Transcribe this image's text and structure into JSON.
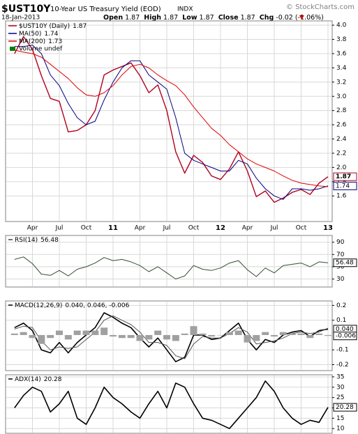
{
  "header": {
    "symbol": "$UST10Y",
    "name": "10-Year US Treasury Yield (EOD)",
    "exchange": "INDX",
    "source": "© StockCharts.com",
    "date": "18-Jan-2013",
    "quote": [
      {
        "label": "Open",
        "value": 1.87
      },
      {
        "label": "High",
        "value": 1.87
      },
      {
        "label": "Low",
        "value": 1.87
      },
      {
        "label": "Close",
        "value": 1.87
      }
    ],
    "change_label": "Chg",
    "change": "-0.02 (-1.06%)"
  },
  "chart_data": [
    {
      "type": "line",
      "x": [
        "2010-02",
        "2010-03",
        "2010-04",
        "2010-05",
        "2010-06",
        "2010-07",
        "2010-08",
        "2010-09",
        "2010-10",
        "2010-11",
        "2010-12",
        "2011-01",
        "2011-02",
        "2011-03",
        "2011-04",
        "2011-05",
        "2011-06",
        "2011-07",
        "2011-08",
        "2011-09",
        "2011-10",
        "2011-11",
        "2011-12",
        "2012-01",
        "2012-02",
        "2012-03",
        "2012-04",
        "2012-05",
        "2012-06",
        "2012-07",
        "2012-08",
        "2012-09",
        "2012-10",
        "2012-11",
        "2012-12",
        "2013-01"
      ],
      "xlim": [
        "2010-01",
        "2013-01"
      ],
      "xticks": [
        {
          "value": "2010-04",
          "label": "Apr"
        },
        {
          "value": "2010-07",
          "label": "Jul"
        },
        {
          "value": "2010-10",
          "label": "Oct"
        },
        {
          "value": "2011-01",
          "label": "11"
        },
        {
          "value": "2011-04",
          "label": "Apr"
        },
        {
          "value": "2011-07",
          "label": "Jul"
        },
        {
          "value": "2011-10",
          "label": "Oct"
        },
        {
          "value": "2012-01",
          "label": "12"
        },
        {
          "value": "2012-04",
          "label": "Apr"
        },
        {
          "value": "2012-07",
          "label": "Jul"
        },
        {
          "value": "2012-10",
          "label": "Oct"
        },
        {
          "value": "2013-01",
          "label": "13"
        }
      ],
      "ylim": [
        1.24,
        4.06
      ],
      "yticks": [
        1.6,
        1.8,
        {
          "value": 2,
          "label": "2.0"
        },
        2.2,
        2.4,
        2.6,
        2.8,
        {
          "value": 3,
          "label": "3.0"
        },
        3.2,
        3.4,
        3.6,
        3.8,
        {
          "value": 4,
          "label": "4.0"
        }
      ],
      "grid": true,
      "series": [
        {
          "name": "$UST10Y (Daily)",
          "color": "#b0001e",
          "values": [
            3.6,
            3.84,
            3.66,
            3.29,
            2.97,
            2.93,
            2.5,
            2.52,
            2.6,
            2.8,
            3.3,
            3.37,
            3.42,
            3.47,
            3.29,
            3.05,
            3.16,
            2.8,
            2.22,
            1.92,
            2.17,
            2.07,
            1.88,
            1.83,
            1.98,
            2.22,
            1.95,
            1.59,
            1.67,
            1.51,
            1.57,
            1.65,
            1.69,
            1.62,
            1.78,
            1.87
          ]
        },
        {
          "name": "MA(50)",
          "color": "#000080",
          "values": [
            3.7,
            3.7,
            3.72,
            3.6,
            3.3,
            3.15,
            2.9,
            2.7,
            2.6,
            2.65,
            2.95,
            3.2,
            3.4,
            3.5,
            3.5,
            3.3,
            3.2,
            3.1,
            2.7,
            2.2,
            2.1,
            2.05,
            2.0,
            1.95,
            1.95,
            2.1,
            2.05,
            1.85,
            1.7,
            1.6,
            1.55,
            1.7,
            1.7,
            1.68,
            1.7,
            1.74
          ]
        },
        {
          "name": "MA(200)",
          "color": "#e00000",
          "values": [
            3.65,
            3.62,
            3.6,
            3.55,
            3.45,
            3.35,
            3.25,
            3.12,
            3.02,
            3.0,
            3.05,
            3.15,
            3.3,
            3.42,
            3.45,
            3.4,
            3.3,
            3.22,
            3.15,
            3.02,
            2.85,
            2.7,
            2.55,
            2.45,
            2.32,
            2.22,
            2.12,
            2.05,
            2.0,
            1.95,
            1.88,
            1.82,
            1.78,
            1.76,
            1.74,
            1.73
          ]
        }
      ],
      "volume_label": "Volume undef"
    },
    {
      "type": "line",
      "label": "RSI(14)",
      "ylim": [
        17,
        101
      ],
      "yticks": [
        30,
        50,
        70,
        90
      ],
      "grid": true,
      "series": [
        {
          "color": "#2f4f2f",
          "values": [
            62,
            66,
            55,
            38,
            36,
            44,
            35,
            46,
            50,
            56,
            65,
            60,
            62,
            58,
            52,
            42,
            50,
            40,
            30,
            35,
            52,
            46,
            44,
            48,
            56,
            60,
            45,
            34,
            48,
            40,
            52,
            54,
            56,
            50,
            58,
            56.48
          ]
        }
      ]
    },
    {
      "type": "line",
      "label": "MACD(12,26,9)",
      "legend": "0.040, 0.046, -0.006",
      "tag_labels": [
        "0.040",
        "-0.006"
      ],
      "ylim": [
        -0.24,
        0.23
      ],
      "yticks": [
        -0.2,
        -0.1,
        0.1,
        0.2
      ],
      "grid": true,
      "series": [
        {
          "color": "#000000",
          "values": [
            0.05,
            0.08,
            0.03,
            -0.1,
            -0.12,
            -0.05,
            -0.12,
            -0.05,
            0.0,
            0.05,
            0.15,
            0.12,
            0.08,
            0.05,
            -0.02,
            -0.08,
            -0.02,
            -0.1,
            -0.18,
            -0.15,
            0.0,
            0.0,
            -0.03,
            -0.02,
            0.03,
            0.08,
            -0.03,
            -0.1,
            -0.03,
            -0.05,
            0.0,
            0.02,
            0.03,
            -0.01,
            0.03,
            0.04
          ]
        },
        {
          "color": "#555555",
          "values": [
            0.04,
            0.06,
            0.05,
            -0.04,
            -0.1,
            -0.08,
            -0.09,
            -0.08,
            -0.03,
            0.02,
            0.1,
            0.13,
            0.1,
            0.07,
            0.02,
            -0.05,
            -0.05,
            -0.07,
            -0.14,
            -0.16,
            -0.06,
            -0.01,
            -0.02,
            -0.02,
            0.01,
            0.05,
            0.02,
            -0.06,
            -0.05,
            -0.04,
            -0.02,
            0.01,
            0.02,
            0.01,
            0.02,
            0.046
          ]
        },
        {
          "type": "bar",
          "color": "#a0a0a0",
          "values": [
            0.01,
            0.02,
            -0.02,
            -0.06,
            -0.02,
            0.03,
            -0.03,
            0.03,
            0.03,
            0.03,
            0.05,
            -0.01,
            -0.02,
            -0.02,
            -0.04,
            -0.03,
            0.03,
            -0.03,
            -0.04,
            0.01,
            0.06,
            0.01,
            -0.01,
            0,
            0.02,
            0.03,
            -0.05,
            -0.04,
            0.02,
            -0.01,
            0.02,
            0.01,
            0.01,
            -0.02,
            0.01,
            -0.006
          ]
        }
      ]
    },
    {
      "type": "line",
      "label": "ADX(14)",
      "ylim": [
        7.7,
        36
      ],
      "yticks": [
        10,
        15,
        20,
        25,
        30,
        35
      ],
      "grid": true,
      "series": [
        {
          "color": "#000000",
          "values": [
            20,
            26,
            30,
            28,
            18,
            22,
            28,
            15,
            12,
            20,
            30,
            25,
            22,
            18,
            15,
            22,
            28,
            20,
            32,
            30,
            22,
            15,
            14,
            12,
            10,
            15,
            20,
            25,
            33,
            28,
            20,
            15,
            12,
            14,
            13,
            20.28
          ]
        }
      ]
    }
  ]
}
